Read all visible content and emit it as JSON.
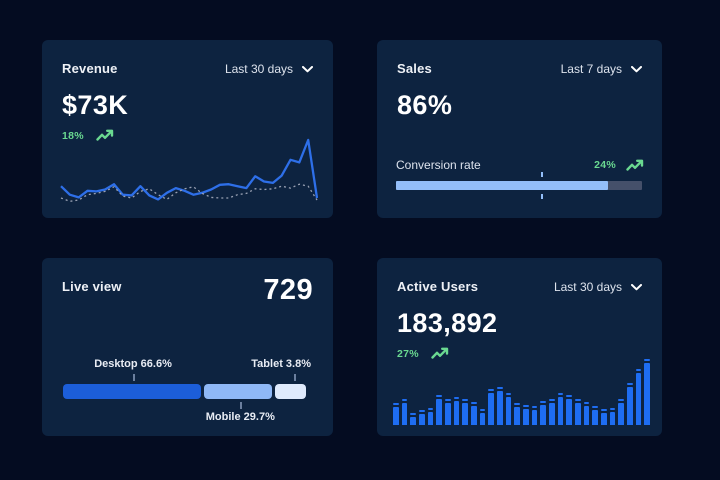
{
  "colors": {
    "page_bg": "#040c21",
    "card_bg": "#0d2340",
    "text_primary": "#ffffff",
    "text_secondary": "#dde3ed",
    "green": "#6ad991",
    "line_blue": "#2e6fe8",
    "line_dotted": "#99a1b3",
    "bar_blue": "#1e6df2",
    "progress_fill": "#93bef9",
    "progress_track": "#45506a",
    "desktop_color": "#1c5ed9",
    "mobile_color": "#8fb8f6",
    "tablet_color": "#dfeafc"
  },
  "cards": {
    "revenue": {
      "title": "Revenue",
      "range_label": "Last 30 days",
      "value": "$73K",
      "delta": "18%"
    },
    "sales": {
      "title": "Sales",
      "range_label": "Last 7 days",
      "value": "86%",
      "metric_label": "Conversion rate",
      "delta": "24%"
    },
    "live_view": {
      "title": "Live view",
      "value": "729",
      "segments": [
        {
          "name": "Desktop",
          "percent": "66.6%",
          "label": "Desktop 66.6%"
        },
        {
          "name": "Mobile",
          "percent": "29.7%",
          "label": "Mobile 29.7%"
        },
        {
          "name": "Tablet",
          "percent": "3.8%",
          "label": "Tablet 3.8%"
        }
      ]
    },
    "active_users": {
      "title": "Active Users",
      "range_label": "Last 30 days",
      "value": "183,892",
      "delta": "27%"
    }
  },
  "chart_data": [
    {
      "id": "revenue-trend",
      "type": "line",
      "title": "Revenue",
      "x_range": "Last 30 days",
      "ylim": [
        0,
        100
      ],
      "grid": false,
      "legend": "none",
      "series": [
        {
          "name": "current",
          "style": "solid",
          "values": [
            24,
            11,
            7,
            17,
            16,
            19,
            27,
            11,
            10,
            24,
            10,
            4,
            14,
            21,
            17,
            11,
            14,
            19,
            26,
            27,
            24,
            21,
            39,
            31,
            29,
            40,
            64,
            60,
            94,
            6
          ]
        },
        {
          "name": "previous",
          "style": "dotted",
          "values": [
            6,
            1,
            3,
            11,
            13,
            16,
            23,
            9,
            6,
            16,
            20,
            11,
            4,
            14,
            20,
            23,
            13,
            7,
            6,
            6,
            11,
            13,
            20,
            19,
            20,
            24,
            21,
            27,
            24,
            3
          ]
        }
      ]
    },
    {
      "id": "conversion-progress",
      "type": "bar",
      "title": "Conversion rate",
      "value_percent": 86,
      "marker_percent": 59,
      "ylim": [
        0,
        100
      ]
    },
    {
      "id": "device-breakdown",
      "type": "bar",
      "title": "Live view device share",
      "categories": [
        "Desktop",
        "Mobile",
        "Tablet"
      ],
      "values": [
        66.6,
        29.7,
        3.8
      ],
      "display_widths": [
        56.5,
        28.0,
        13.5
      ],
      "gap_percent": 1.0,
      "label_positions": [
        "above",
        "below",
        "above"
      ]
    },
    {
      "id": "active-users-trend",
      "type": "bar",
      "title": "Active Users",
      "x_range": "Last 30 days",
      "ylim": [
        0,
        100
      ],
      "values": [
        34,
        40,
        18,
        22,
        26,
        45,
        40,
        43,
        40,
        35,
        25,
        55,
        57,
        49,
        34,
        31,
        29,
        37,
        40,
        48,
        46,
        40,
        35,
        29,
        25,
        26,
        40,
        63,
        85,
        100
      ]
    }
  ]
}
